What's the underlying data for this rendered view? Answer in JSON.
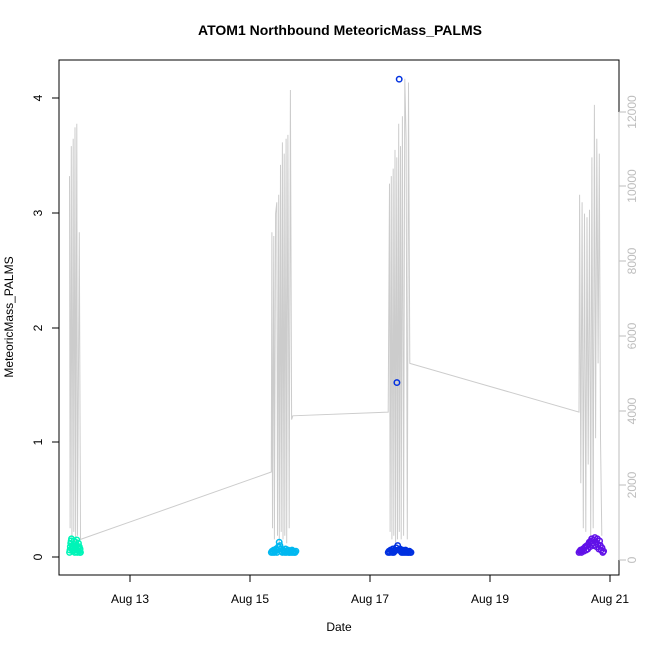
{
  "chart_data": {
    "type": "scatter",
    "title": "ATOM1 Northbound MeteoricMass_PALMS",
    "xlabel": "Date",
    "ylabel": "MeteoricMass_PALMS",
    "y2label": "",
    "x_ticks": [
      "Aug 13",
      "Aug 15",
      "Aug 17",
      "Aug 19",
      "Aug 21"
    ],
    "y_ticks": [
      "0",
      "1",
      "2",
      "3",
      "4"
    ],
    "y2_ticks": [
      "0",
      "2000",
      "4000",
      "6000",
      "8000",
      "10000",
      "12000"
    ],
    "xlim_days": [
      12.0,
      21.1
    ],
    "ylim": [
      -0.2,
      4.35
    ],
    "y2lim": [
      -650,
      13100
    ],
    "grid": false,
    "colors": {
      "flight1": "#00f5b8",
      "flight2": "#00b8f0",
      "flight3": "#0030e0",
      "flight4": "#6010e8",
      "altitude": "#cccccc"
    },
    "series": [
      {
        "x_range": [
          12.17,
          12.35
        ],
        "values_y": [
          0.0,
          0.02,
          0.05,
          0.08,
          0.1,
          0.12,
          0.03,
          0.06,
          0.01,
          0.04,
          0.07,
          0.1,
          0.02,
          0.0,
          0.05,
          0.09,
          0.03,
          0.06,
          0.11,
          0.0,
          0.02,
          0.04,
          0.08,
          0.01,
          0.05,
          0.0,
          0.03,
          0.0
        ]
      },
      {
        "x_range": [
          15.45,
          15.85
        ],
        "values_y": [
          0.0,
          0.01,
          0.0,
          0.02,
          0.0,
          0.01,
          0.03,
          0.0,
          0.02,
          0.05,
          0.09,
          0.06,
          0.03,
          0.01,
          0.0,
          0.02,
          0.01,
          0.0,
          0.03,
          0.0,
          0.01,
          0.02,
          0.0,
          0.0,
          0.01,
          0.0,
          0.02,
          0.0,
          0.01,
          0.0,
          0.0,
          0.01
        ]
      },
      {
        "x_range": [
          17.35,
          17.72
        ],
        "values_y": [
          0.0,
          0.01,
          0.0,
          0.02,
          0.01,
          0.0,
          0.03,
          0.0,
          0.01,
          0.02,
          0.04,
          1.5,
          0.06,
          0.02,
          4.18,
          0.03,
          0.01,
          0.0,
          0.02,
          0.0,
          0.01,
          0.0,
          0.02,
          0.0,
          0.01,
          0.0,
          0.0,
          0.01,
          0.0,
          0.0
        ]
      },
      {
        "x_range": [
          20.45,
          20.85
        ],
        "values_y": [
          0.0,
          0.01,
          0.02,
          0.0,
          0.02,
          0.03,
          0.01,
          0.04,
          0.05,
          0.02,
          0.06,
          0.03,
          0.07,
          0.09,
          0.05,
          0.1,
          0.12,
          0.08,
          0.06,
          0.11,
          0.13,
          0.09,
          0.05,
          0.12,
          0.07,
          0.03,
          0.1,
          0.06,
          0.02,
          0.04,
          0.0,
          0.01
        ]
      }
    ],
    "altitude_profile": [
      {
        "x": 12.17,
        "y2": 10000
      },
      {
        "x": 12.18,
        "y2": 600
      },
      {
        "x": 12.2,
        "y2": 10800
      },
      {
        "x": 12.21,
        "y2": 300
      },
      {
        "x": 12.23,
        "y2": 11000
      },
      {
        "x": 12.24,
        "y2": 500
      },
      {
        "x": 12.26,
        "y2": 11300
      },
      {
        "x": 12.27,
        "y2": 200
      },
      {
        "x": 12.29,
        "y2": 11400
      },
      {
        "x": 12.3,
        "y2": 400
      },
      {
        "x": 12.33,
        "y2": 8500
      },
      {
        "x": 12.35,
        "y2": 300
      },
      {
        "x": 15.45,
        "y2": 2100
      },
      {
        "x": 15.46,
        "y2": 8500
      },
      {
        "x": 15.47,
        "y2": 600
      },
      {
        "x": 15.49,
        "y2": 8400
      },
      {
        "x": 15.5,
        "y2": 300
      },
      {
        "x": 15.52,
        "y2": 9000
      },
      {
        "x": 15.54,
        "y2": 9300
      },
      {
        "x": 15.55,
        "y2": 400
      },
      {
        "x": 15.57,
        "y2": 9500
      },
      {
        "x": 15.58,
        "y2": 200
      },
      {
        "x": 15.6,
        "y2": 10300
      },
      {
        "x": 15.61,
        "y2": 500
      },
      {
        "x": 15.63,
        "y2": 10900
      },
      {
        "x": 15.64,
        "y2": 300
      },
      {
        "x": 15.66,
        "y2": 10600
      },
      {
        "x": 15.67,
        "y2": 400
      },
      {
        "x": 15.69,
        "y2": 11000
      },
      {
        "x": 15.7,
        "y2": 200
      },
      {
        "x": 15.72,
        "y2": 11100
      },
      {
        "x": 15.74,
        "y2": 600
      },
      {
        "x": 15.76,
        "y2": 12300
      },
      {
        "x": 15.78,
        "y2": 3500
      },
      {
        "x": 15.8,
        "y2": 3600
      },
      {
        "x": 17.35,
        "y2": 3700
      },
      {
        "x": 17.37,
        "y2": 9800
      },
      {
        "x": 17.38,
        "y2": 500
      },
      {
        "x": 17.4,
        "y2": 10000
      },
      {
        "x": 17.41,
        "y2": 300
      },
      {
        "x": 17.43,
        "y2": 10200
      },
      {
        "x": 17.44,
        "y2": 400
      },
      {
        "x": 17.46,
        "y2": 10700
      },
      {
        "x": 17.47,
        "y2": 200
      },
      {
        "x": 17.49,
        "y2": 10500
      },
      {
        "x": 17.5,
        "y2": 300
      },
      {
        "x": 17.52,
        "y2": 11400
      },
      {
        "x": 17.53,
        "y2": 500
      },
      {
        "x": 17.55,
        "y2": 10800
      },
      {
        "x": 17.56,
        "y2": 300
      },
      {
        "x": 17.58,
        "y2": 11600
      },
      {
        "x": 17.6,
        "y2": 400
      },
      {
        "x": 17.62,
        "y2": 12600
      },
      {
        "x": 17.64,
        "y2": 11000
      },
      {
        "x": 17.66,
        "y2": 300
      },
      {
        "x": 17.68,
        "y2": 12500
      },
      {
        "x": 17.7,
        "y2": 5000
      },
      {
        "x": 20.45,
        "y2": 3700
      },
      {
        "x": 20.46,
        "y2": 9500
      },
      {
        "x": 20.48,
        "y2": 1800
      },
      {
        "x": 20.5,
        "y2": 9300
      },
      {
        "x": 20.52,
        "y2": 600
      },
      {
        "x": 20.54,
        "y2": 9000
      },
      {
        "x": 20.56,
        "y2": 500
      },
      {
        "x": 20.58,
        "y2": 8900
      },
      {
        "x": 20.6,
        "y2": 2300
      },
      {
        "x": 20.62,
        "y2": 9100
      },
      {
        "x": 20.64,
        "y2": 400
      },
      {
        "x": 20.66,
        "y2": 10500
      },
      {
        "x": 20.68,
        "y2": 600
      },
      {
        "x": 20.7,
        "y2": 11900
      },
      {
        "x": 20.72,
        "y2": 3000
      },
      {
        "x": 20.74,
        "y2": 11000
      },
      {
        "x": 20.76,
        "y2": 5000
      },
      {
        "x": 20.78,
        "y2": 10600
      },
      {
        "x": 20.8,
        "y2": 3000
      },
      {
        "x": 20.82,
        "y2": 400
      }
    ]
  }
}
